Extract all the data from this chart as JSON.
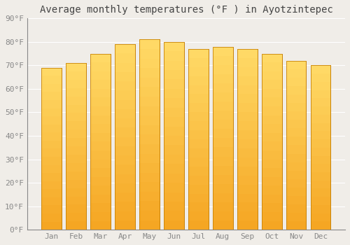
{
  "title": "Average monthly temperatures (°F ) in Ayotzintepec",
  "months": [
    "Jan",
    "Feb",
    "Mar",
    "Apr",
    "May",
    "Jun",
    "Jul",
    "Aug",
    "Sep",
    "Oct",
    "Nov",
    "Dec"
  ],
  "values": [
    69,
    71,
    75,
    79,
    81,
    80,
    77,
    78,
    77,
    75,
    72,
    70
  ],
  "bar_color_bottom": "#F5A623",
  "bar_color_top": "#FFD966",
  "bar_edge_color": "#C8830A",
  "ylim": [
    0,
    90
  ],
  "yticks": [
    0,
    10,
    20,
    30,
    40,
    50,
    60,
    70,
    80,
    90
  ],
  "ytick_labels": [
    "0°F",
    "10°F",
    "20°F",
    "30°F",
    "40°F",
    "50°F",
    "60°F",
    "70°F",
    "80°F",
    "90°F"
  ],
  "background_color": "#f0ede8",
  "grid_color": "#ffffff",
  "title_fontsize": 10,
  "tick_fontsize": 8,
  "font_family": "monospace"
}
